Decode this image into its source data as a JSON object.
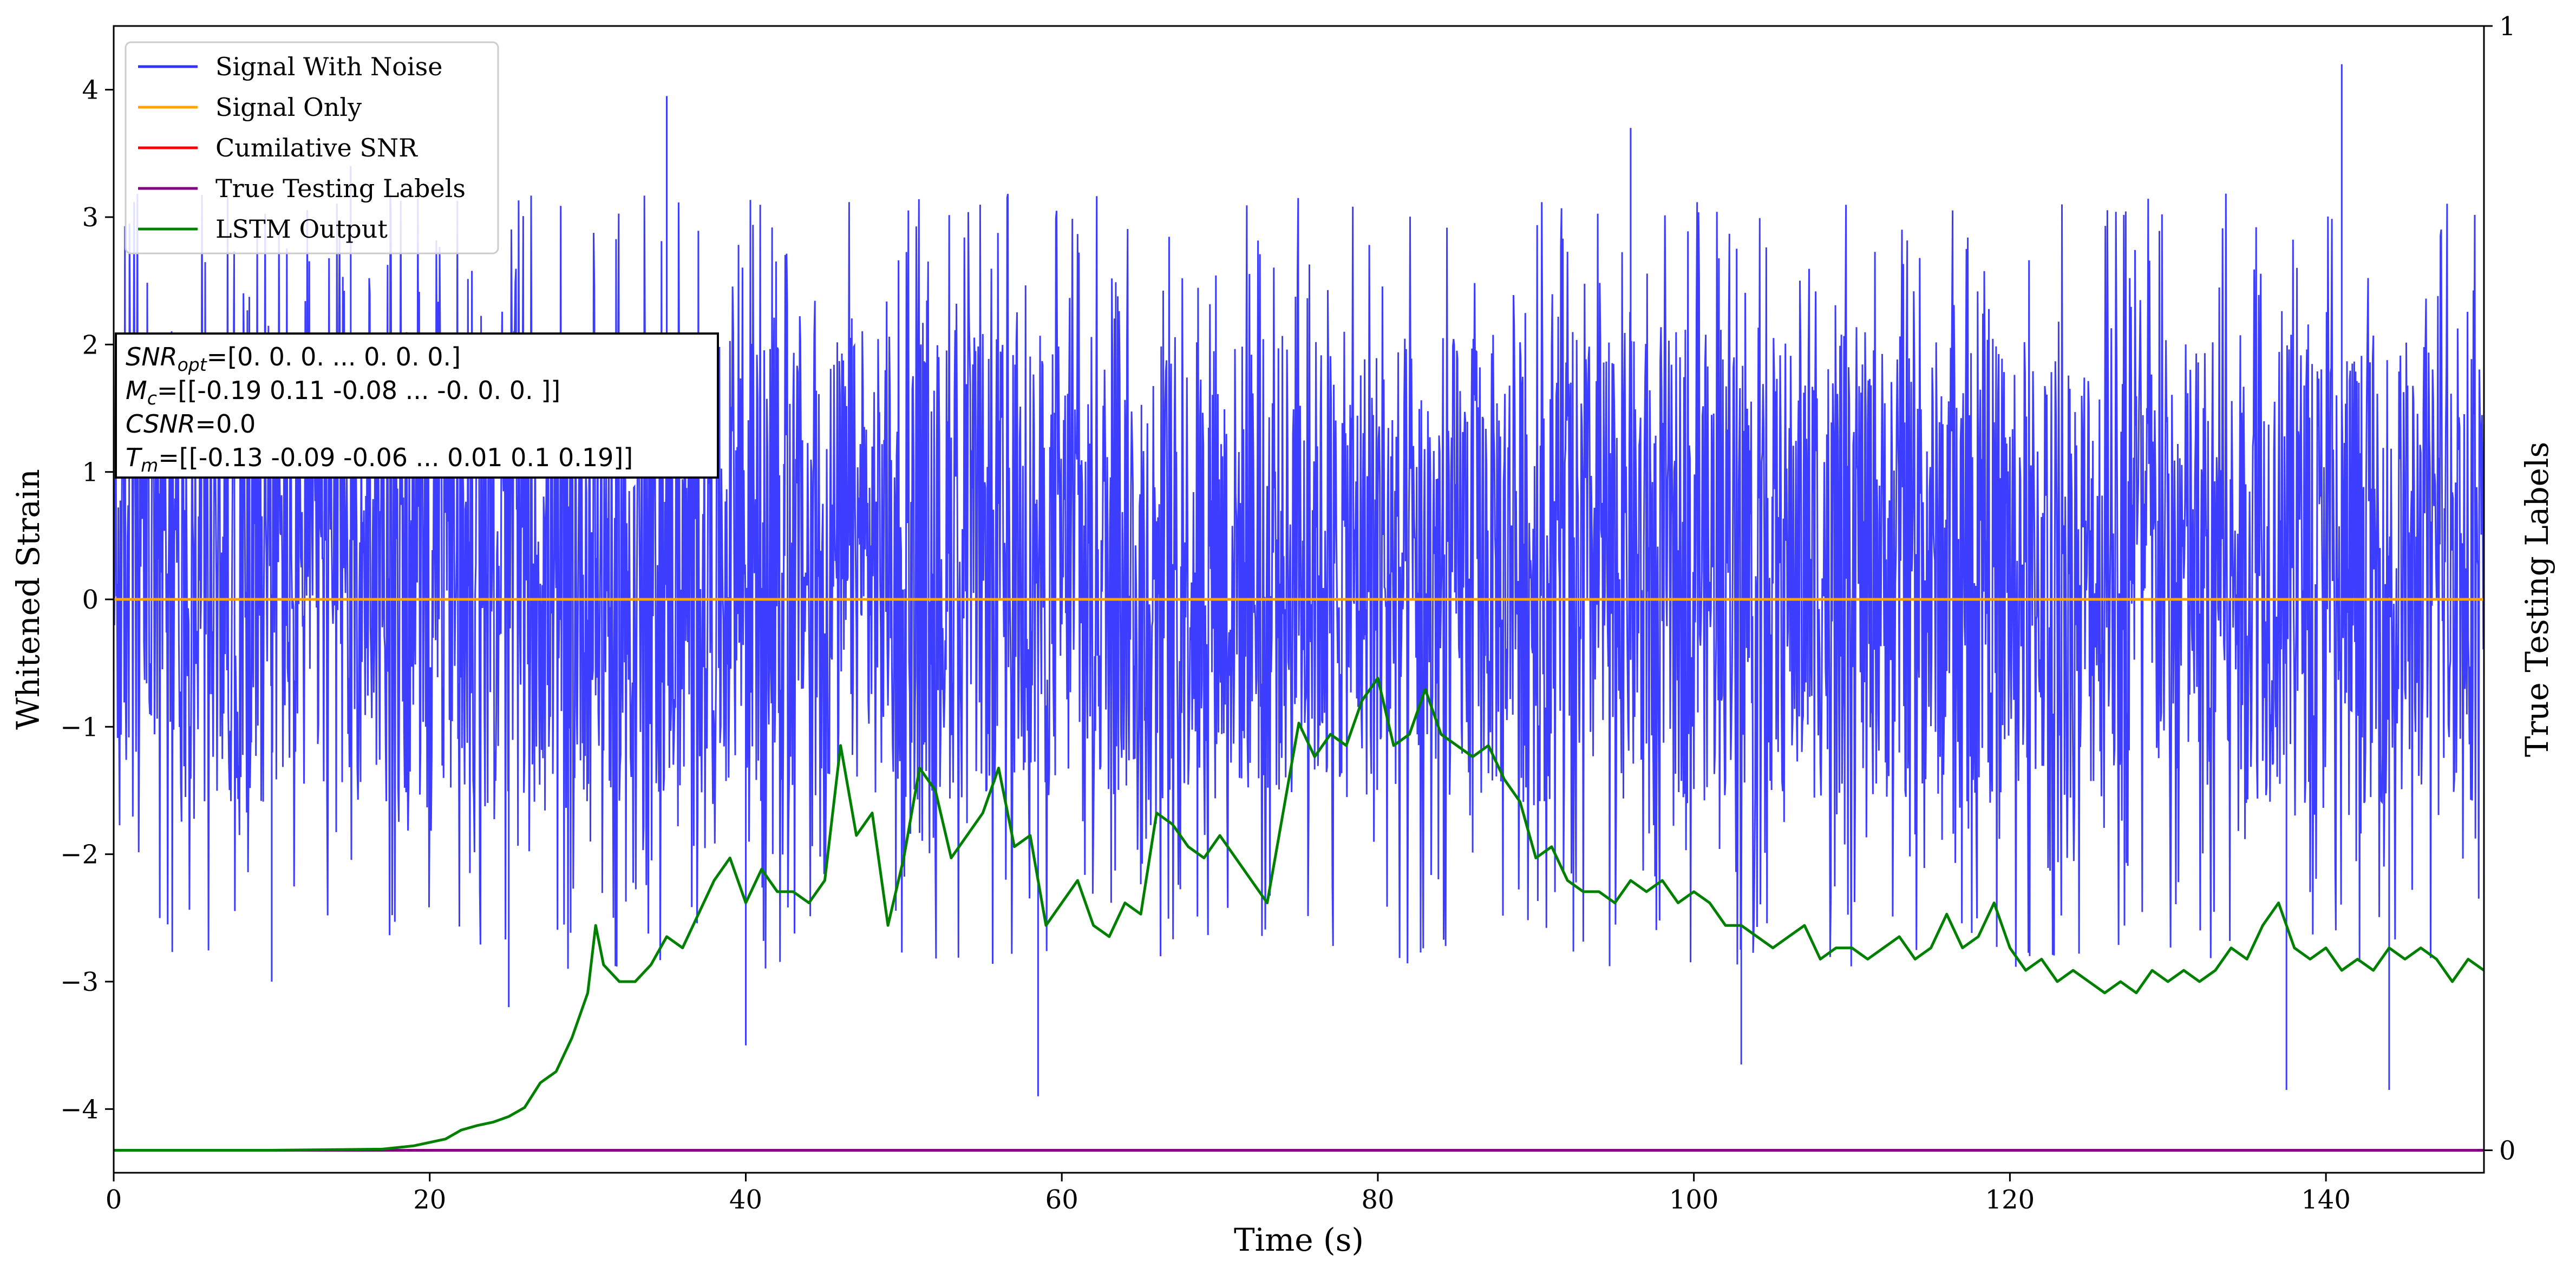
{
  "chart_data": {
    "type": "line",
    "xlabel": "Time (s)",
    "ylabel": "Whitened Strain",
    "y2label": "True Testing Labels",
    "xlim": [
      0,
      150
    ],
    "ylim": [
      -4.5,
      4.5
    ],
    "y2lim": [
      -0.02,
      1.0
    ],
    "xticks": [
      "0",
      "20",
      "40",
      "60",
      "80",
      "100",
      "120",
      "140"
    ],
    "xtick_values": [
      0,
      20,
      40,
      60,
      80,
      100,
      120,
      140
    ],
    "yticks": [
      "−4",
      "−3",
      "−2",
      "−1",
      "0",
      "1",
      "2",
      "3",
      "4"
    ],
    "ytick_values": [
      -4,
      -3,
      -2,
      -1,
      0,
      1,
      2,
      3,
      4
    ],
    "y2ticks": [
      "0",
      "1"
    ],
    "y2tick_values": [
      0,
      1
    ],
    "grid": false,
    "legend_position": "top-left",
    "legend": [
      {
        "name": "Signal With Noise",
        "color": "#3333ff"
      },
      {
        "name": "Signal Only",
        "color": "#ffa500"
      },
      {
        "name": "Cumilative SNR",
        "color": "#ff0000"
      },
      {
        "name": "True Testing Labels",
        "color": "#800080"
      },
      {
        "name": "LSTM Output",
        "color": "#008000"
      }
    ],
    "annotation_lines": [
      {
        "var": "SNR",
        "sub": "opt",
        "rest": "=[0. 0. 0. ... 0. 0. 0.]"
      },
      {
        "var": "M",
        "sub": "c",
        "rest": "=[[-0.19  0.11 -0.08 ... -0.    0.    0.  ]]"
      },
      {
        "var": "CSNR",
        "sub": "",
        "rest": "=0.0"
      },
      {
        "var": "T",
        "sub": "m",
        "rest": "=[[-0.13 -0.09 -0.06 ...  0.01  0.1   0.19]]"
      }
    ],
    "series": [
      {
        "name": "Signal With Noise",
        "color": "#3333ff",
        "style": "dense noise",
        "typical_range": [
          -1.6,
          2.1
        ],
        "extremes": [
          {
            "x": 10,
            "y": -3.0
          },
          {
            "x": 15,
            "y": 3.4
          },
          {
            "x": 25,
            "y": -3.2
          },
          {
            "x": 35,
            "y": 3.95
          },
          {
            "x": 40,
            "y": -3.5
          },
          {
            "x": 58.5,
            "y": -3.9
          },
          {
            "x": 96,
            "y": 3.7
          },
          {
            "x": 103,
            "y": -3.65
          },
          {
            "x": 137.5,
            "y": -3.85
          },
          {
            "x": 141,
            "y": 4.2
          },
          {
            "x": 144,
            "y": -3.85
          }
        ]
      },
      {
        "name": "Signal Only",
        "color": "#ffa500",
        "x": [
          0,
          150
        ],
        "y": [
          0,
          0
        ]
      },
      {
        "name": "True Testing Labels",
        "color": "#800080",
        "axis": "right",
        "x": [
          0,
          150
        ],
        "y": [
          0,
          0
        ]
      },
      {
        "name": "LSTM Output",
        "color": "#008000",
        "axis": "right",
        "x": [
          0,
          10,
          17,
          19,
          21,
          22,
          23,
          24,
          25,
          26,
          27,
          28,
          29,
          30,
          30.5,
          31,
          32,
          33,
          34,
          35,
          36,
          37,
          38,
          39,
          40,
          41,
          42,
          43,
          44,
          45,
          46,
          47,
          48,
          49,
          50,
          51,
          52,
          53,
          54,
          55,
          56,
          57,
          58,
          59,
          60,
          61,
          62,
          63,
          64,
          65,
          66,
          67,
          68,
          69,
          70,
          71,
          72,
          73,
          74,
          75,
          76,
          77,
          78,
          79,
          80,
          81,
          82,
          83,
          84,
          85,
          86,
          87,
          88,
          89,
          90,
          91,
          92,
          93,
          94,
          95,
          96,
          97,
          98,
          99,
          100,
          101,
          102,
          103,
          104,
          105,
          106,
          107,
          108,
          109,
          110,
          111,
          112,
          113,
          114,
          115,
          116,
          117,
          118,
          119,
          120,
          121,
          122,
          123,
          124,
          125,
          126,
          127,
          128,
          129,
          130,
          131,
          132,
          133,
          134,
          135,
          136,
          137,
          138,
          139,
          140,
          141,
          142,
          143,
          144,
          145,
          146,
          147,
          148,
          149,
          150
        ],
        "y": [
          0,
          0,
          0.001,
          0.004,
          0.01,
          0.018,
          0.022,
          0.025,
          0.03,
          0.038,
          0.06,
          0.07,
          0.1,
          0.14,
          0.2,
          0.165,
          0.15,
          0.15,
          0.165,
          0.19,
          0.18,
          0.21,
          0.24,
          0.26,
          0.22,
          0.25,
          0.23,
          0.23,
          0.22,
          0.24,
          0.36,
          0.28,
          0.3,
          0.2,
          0.26,
          0.34,
          0.32,
          0.26,
          0.28,
          0.3,
          0.34,
          0.27,
          0.28,
          0.2,
          0.22,
          0.24,
          0.2,
          0.19,
          0.22,
          0.21,
          0.3,
          0.29,
          0.27,
          0.26,
          0.28,
          0.26,
          0.24,
          0.22,
          0.3,
          0.38,
          0.35,
          0.37,
          0.36,
          0.4,
          0.42,
          0.36,
          0.37,
          0.41,
          0.37,
          0.36,
          0.35,
          0.36,
          0.33,
          0.31,
          0.26,
          0.27,
          0.24,
          0.23,
          0.23,
          0.22,
          0.24,
          0.23,
          0.24,
          0.22,
          0.23,
          0.22,
          0.2,
          0.2,
          0.19,
          0.18,
          0.19,
          0.2,
          0.17,
          0.18,
          0.18,
          0.17,
          0.18,
          0.19,
          0.17,
          0.18,
          0.21,
          0.18,
          0.19,
          0.22,
          0.18,
          0.16,
          0.17,
          0.15,
          0.16,
          0.15,
          0.14,
          0.15,
          0.14,
          0.16,
          0.15,
          0.16,
          0.15,
          0.16,
          0.18,
          0.17,
          0.2,
          0.22,
          0.18,
          0.17,
          0.18,
          0.16,
          0.17,
          0.16,
          0.18,
          0.17,
          0.18,
          0.17,
          0.15,
          0.17,
          0.16
        ]
      }
    ]
  }
}
